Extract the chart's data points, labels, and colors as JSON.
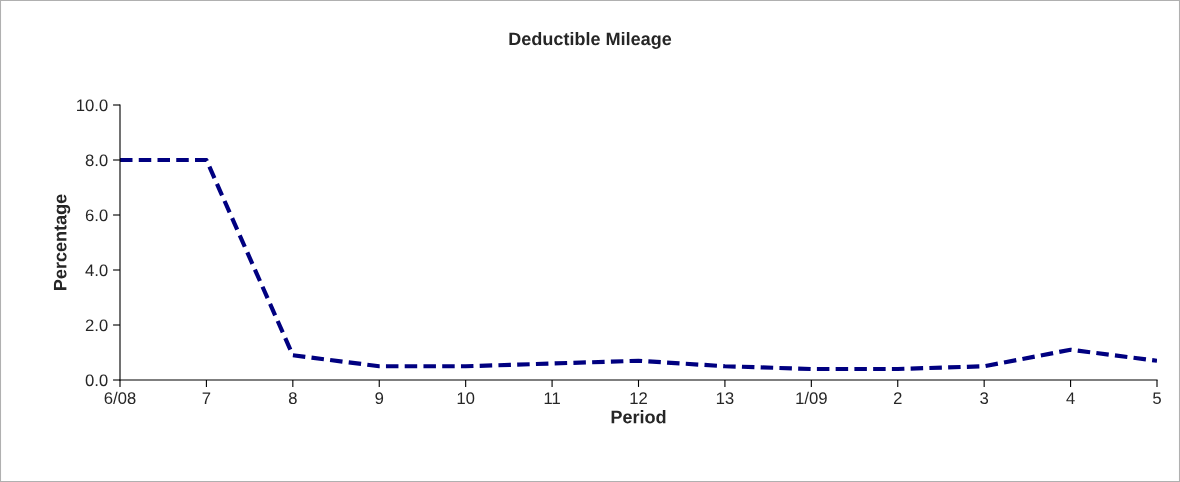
{
  "chart_data": {
    "type": "line",
    "title": "Deductible Mileage",
    "xlabel": "Period",
    "ylabel": "Percentage",
    "categories": [
      "6/08",
      "7",
      "8",
      "9",
      "10",
      "11",
      "12",
      "13",
      "1/09",
      "2",
      "3",
      "4",
      "5"
    ],
    "series": [
      {
        "color": "#000080",
        "values": [
          8.0,
          8.0,
          0.9,
          0.5,
          0.5,
          0.6,
          0.7,
          0.5,
          0.4,
          0.4,
          0.5,
          1.1,
          0.7
        ]
      }
    ],
    "ylim": [
      0,
      10
    ],
    "yticks": [
      {
        "value": 0,
        "label": "0.0"
      },
      {
        "value": 2,
        "label": "2.0"
      },
      {
        "value": 4,
        "label": "4.0"
      },
      {
        "value": 6,
        "label": "6.0"
      },
      {
        "value": 8,
        "label": "8.0"
      },
      {
        "value": 10,
        "label": "10.0"
      }
    ],
    "grid": false,
    "line_style": "dashed",
    "marker": "none"
  }
}
